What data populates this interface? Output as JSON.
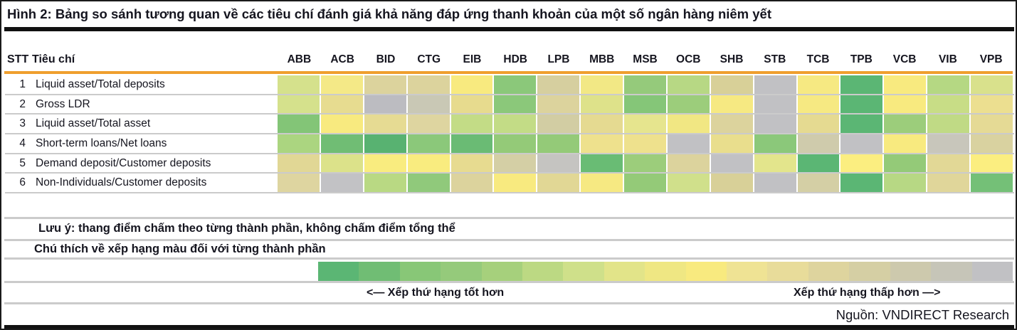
{
  "title": "Hình 2: Bảng so sánh tương quan về các tiêu chí đánh giá khả năng đáp ứng thanh khoản của một số ngân hàng niêm yết",
  "header": {
    "stt": "STT",
    "criteria": "Tiêu chí"
  },
  "chart_data": {
    "type": "heatmap",
    "title": "Hình 2: Bảng so sánh tương quan về các tiêu chí đánh giá khả năng đáp ứng thanh khoản của một số ngân hàng niêm yết",
    "columns": [
      "ABB",
      "ACB",
      "BID",
      "CTG",
      "EIB",
      "HDB",
      "LPB",
      "MBB",
      "MSB",
      "OCB",
      "SHB",
      "STB",
      "TCB",
      "TPB",
      "VCB",
      "VIB",
      "VPB"
    ],
    "rows": [
      {
        "stt": "1",
        "label": "Liquid asset/Total deposits",
        "colors": [
          "#d5e18c",
          "#f4e987",
          "#dcd39d",
          "#dcd39d",
          "#f8ea7f",
          "#8bc87a",
          "#d6cf9f",
          "#f2e885",
          "#95ca7b",
          "#b7d884",
          "#d8d098",
          "#c1c1c4",
          "#f6e982",
          "#5bb674",
          "#f8ea7f",
          "#b5d883",
          "#d9e18c"
        ]
      },
      {
        "stt": "2",
        "label": "Gross LDR",
        "colors": [
          "#d5e18c",
          "#e7dc90",
          "#bcbcc1",
          "#c9c8b5",
          "#e7db8e",
          "#8bc87a",
          "#dcd39d",
          "#dee28a",
          "#85c678",
          "#9ccd7b",
          "#f6e982",
          "#c1c1c4",
          "#f6e982",
          "#5bb674",
          "#f8ea7f",
          "#c8dd86",
          "#ecdf90"
        ]
      },
      {
        "stt": "3",
        "label": "Liquid asset/Total asset",
        "colors": [
          "#83c577",
          "#f8ea7f",
          "#e6db93",
          "#ded5a0",
          "#c3dc86",
          "#c3dc86",
          "#d2cda3",
          "#e5da91",
          "#e6e58e",
          "#f1e783",
          "#dcd39d",
          "#c1c1c4",
          "#e5da91",
          "#5bb674",
          "#9ccd7b",
          "#c0da85",
          "#e5da95"
        ]
      },
      {
        "stt": "4",
        "label": "Short-term loans/Net loans",
        "colors": [
          "#abd580",
          "#70bd74",
          "#58b271",
          "#8bc87a",
          "#6abb74",
          "#94ca78",
          "#94ca78",
          "#eee18d",
          "#eee18d",
          "#c1c1c4",
          "#e9de8d",
          "#8bc87a",
          "#cfcbac",
          "#c1c1c4",
          "#f8ea7f",
          "#c8c6bb",
          "#d9d2a0"
        ]
      },
      {
        "stt": "5",
        "label": "Demand deposit/Customer deposits",
        "colors": [
          "#e1d795",
          "#dce28a",
          "#f9ec7f",
          "#f9ec7f",
          "#e7db90",
          "#d4cfa5",
          "#c5c4c1",
          "#69bc74",
          "#9ccd7b",
          "#dcd39d",
          "#c1c1c4",
          "#e3e58c",
          "#5bb674",
          "#fbee80",
          "#94ca78",
          "#e2d896",
          "#fbee80"
        ]
      },
      {
        "stt": "6",
        "label": "Non-Individuals/Customer deposits",
        "colors": [
          "#ded5a0",
          "#c2c2c5",
          "#b9d983",
          "#90c97b",
          "#dcd39d",
          "#f8ea7f",
          "#e1d795",
          "#f6e982",
          "#94ca78",
          "#d0e08b",
          "#d8d098",
          "#c1c1c4",
          "#d4cfa5",
          "#5bb674",
          "#b7d884",
          "#e0d69a",
          "#74c077"
        ]
      }
    ],
    "legend_colors": [
      "#5bb674",
      "#70bd74",
      "#88c777",
      "#95ca7b",
      "#a6d07c",
      "#bcd983",
      "#cfe08a",
      "#e2e489",
      "#efe783",
      "#f8ea7f",
      "#efe394",
      "#e8dc9a",
      "#ded49e",
      "#d5cfa4",
      "#cdc9ad",
      "#c6c5b8",
      "#c1c1c4"
    ],
    "legend_better": "<— Xếp thứ hạng tốt hơn",
    "legend_worse": "Xếp thứ hạng thấp hơn —>"
  },
  "notes": {
    "note1": "Lưu ý: thang điểm chấm theo từng thành phần, không chấm điểm tổng thể",
    "note2": "Chú thích về xếp hạng màu đối với từng thành phần"
  },
  "source": "Nguồn: VNDIRECT Research",
  "colors": {
    "accent_orange": "#ef9f2e",
    "text": "#15151f",
    "separator": "#cbcbcb"
  }
}
